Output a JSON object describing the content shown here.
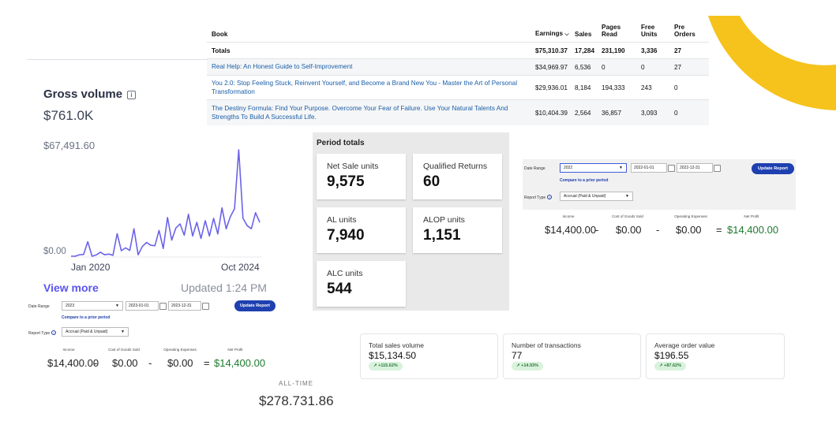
{
  "book_table": {
    "headers": {
      "book": "Book",
      "earnings": "Earnings",
      "sales": "Sales",
      "pages_read_1": "Pages",
      "pages_read_2": "Read",
      "free_units_1": "Free",
      "free_units_2": "Units",
      "pre_orders_1": "Pre",
      "pre_orders_2": "Orders"
    },
    "totals": {
      "label": "Totals",
      "earnings": "$75,310.37",
      "sales": "17,284",
      "pages_read": "231,190",
      "free_units": "3,336",
      "pre_orders": "27"
    },
    "rows": [
      {
        "title": "Real Help: An Honest Guide to Self-Improvement",
        "earnings": "$34,969.97",
        "sales": "6,536",
        "pages_read": "0",
        "free_units": "0",
        "pre_orders": "27"
      },
      {
        "title": "You 2.0: Stop Feeling Stuck, Reinvent Yourself, and Become a Brand New You - Master the Art of Personal Transformation",
        "earnings": "$29,936.01",
        "sales": "8,184",
        "pages_read": "194,333",
        "free_units": "243",
        "pre_orders": "0"
      },
      {
        "title": "The Destiny Formula: Find Your Purpose. Overcome Your Fear of Failure. Use Your Natural Talents And Strengths To Build A Successful Life.",
        "earnings": "$10,404.39",
        "sales": "2,564",
        "pages_read": "36,857",
        "free_units": "3,093",
        "pre_orders": "0"
      }
    ]
  },
  "gross_volume": {
    "title": "Gross volume",
    "info_icon": "info-icon",
    "amount": "$761.0K",
    "y_max_label": "$67,491.60",
    "y_min_label": "$0.00",
    "x_start_label": "Jan 2020",
    "x_end_label": "Oct 2024",
    "view_more": "View more",
    "updated": "Updated 1:24 PM",
    "line_color": "#6b63e8"
  },
  "chart_data": {
    "type": "line",
    "title": "",
    "xlabel": "",
    "ylabel": "",
    "ylim": [
      0,
      67491.6
    ],
    "x_tick_labels": [
      "Jan 2020",
      "Oct 2024"
    ],
    "y_tick_labels": [
      "$0.00",
      "$67,491.60"
    ],
    "values": [
      0,
      0,
      900,
      1100,
      9000,
      0,
      800,
      2500,
      900,
      1300,
      600,
      14000,
      3400,
      5200,
      3600,
      17000,
      900,
      6000,
      8500,
      6800,
      6500,
      16000,
      4800,
      24000,
      10000,
      17500,
      20000,
      13000,
      26000,
      12500,
      21000,
      11000,
      22000,
      12500,
      23500,
      13800,
      30000,
      17000,
      24500,
      29500,
      66000,
      23500,
      19000,
      17000,
      27000,
      21000
    ]
  },
  "period_totals": {
    "title": "Period totals",
    "cards": [
      {
        "label": "Net Sale units",
        "value": "9,575"
      },
      {
        "label": "Qualified Returns",
        "value": "60"
      },
      {
        "label": "AL units",
        "value": "7,940"
      },
      {
        "label": "ALOP units",
        "value": "1,151"
      },
      {
        "label": "ALC units",
        "value": "544"
      }
    ]
  },
  "report_2022": {
    "date_range_label": "Date Range",
    "year": "2022",
    "start_date": "2022-01-01",
    "end_date": "2022-12-31",
    "update_button": "Update Report",
    "compare_link": "Compare to a prior period",
    "report_type_label": "Report Type",
    "report_type_value": "Accrual (Paid & Unpaid)",
    "col_income": "Income",
    "col_cogs": "Cost of Goods Sold",
    "col_opex": "Operating Expenses",
    "col_profit": "Net Profit",
    "income": "$14,400.00",
    "cogs": "$0.00",
    "opex": "$0.00",
    "profit": "$14,400.00",
    "minus": "-",
    "equals": "="
  },
  "report_2023": {
    "date_range_label": "Date Range",
    "year": "2023",
    "start_date": "2023-01-01",
    "end_date": "2023-12-31",
    "update_button": "Update Report",
    "compare_link": "Compare to a prior period",
    "report_type_label": "Report Type",
    "report_type_value": "Accrual (Paid & Unpaid)",
    "col_income": "Income",
    "col_cogs": "Cost of Goods Sold",
    "col_opex": "Operating Expenses",
    "col_profit": "Net Profit",
    "income": "$14,400.00",
    "cogs": "$0.00",
    "opex": "$0.00",
    "profit": "$14,400.00",
    "minus": "-",
    "equals": "="
  },
  "stats": [
    {
      "label": "Total sales volume",
      "value": "$15,134.50",
      "badge": "+115.62%"
    },
    {
      "label": "Number of transactions",
      "value": "77",
      "badge": "+14.93%"
    },
    {
      "label": "Average order value",
      "value": "$196.55",
      "badge": "+87.62%"
    }
  ],
  "all_time": {
    "label": "ALL-TIME",
    "value": "$278.731.86"
  },
  "colors": {
    "accent_yellow": "#f6c21c",
    "link_blue": "#1a5ea8",
    "button_blue": "#1e40b0",
    "profit_green": "#1e7a2e"
  }
}
